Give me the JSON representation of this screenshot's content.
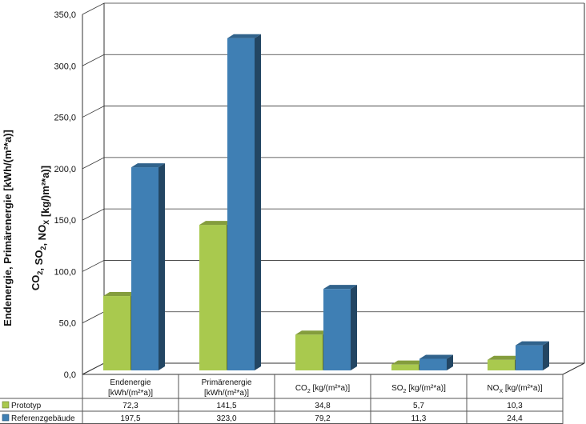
{
  "chart_data": {
    "type": "bar",
    "categories": [
      {
        "main": "Endenergie",
        "unit": "[kWh/(m²*a)]"
      },
      {
        "main": "Primärenergie",
        "unit": "[kWh/(m²*a)]"
      },
      {
        "main": "CO",
        "sub": "2",
        "unit": " [kg/(m²*a)]"
      },
      {
        "main": "SO",
        "sub": "2",
        "unit": " [kg/(m²*a)]"
      },
      {
        "main": "NO",
        "sub": "X",
        "unit": " [kg/(m²*a)]"
      }
    ],
    "series": [
      {
        "name": "Prototyp",
        "color": "#a9c94e",
        "values": [
          72.3,
          141.5,
          34.8,
          5.7,
          10.3
        ],
        "labels": [
          "72,3",
          "141,5",
          "34,8",
          "5,7",
          "10,3"
        ]
      },
      {
        "name": "Referenzgebäude",
        "color": "#3f7fb4",
        "values": [
          197.5,
          323.0,
          79.2,
          11.3,
          24.4
        ],
        "labels": [
          "197,5",
          "323,0",
          "79,2",
          "11,3",
          "24,4"
        ]
      }
    ],
    "ylim": [
      0,
      350
    ],
    "yticks": [
      0,
      50,
      100,
      150,
      200,
      250,
      300,
      350
    ],
    "ytick_labels": [
      "0,0",
      "50,0",
      "100,0",
      "150,0",
      "200,0",
      "250,0",
      "300,0",
      "350,0"
    ],
    "ylabel_line1": "Endenergie, Primärenergie [kWh/(m²*a)]",
    "ylabel_line2": [
      {
        "t": "CO"
      },
      {
        "t": "2",
        "sub": true
      },
      {
        "t": ", SO"
      },
      {
        "t": "2",
        "sub": true
      },
      {
        "t": ", NO"
      },
      {
        "t": "X",
        "sub": true
      },
      {
        "t": " [kg/)m²*a)]"
      }
    ],
    "grid": true,
    "legend": "data-table-bottom"
  }
}
